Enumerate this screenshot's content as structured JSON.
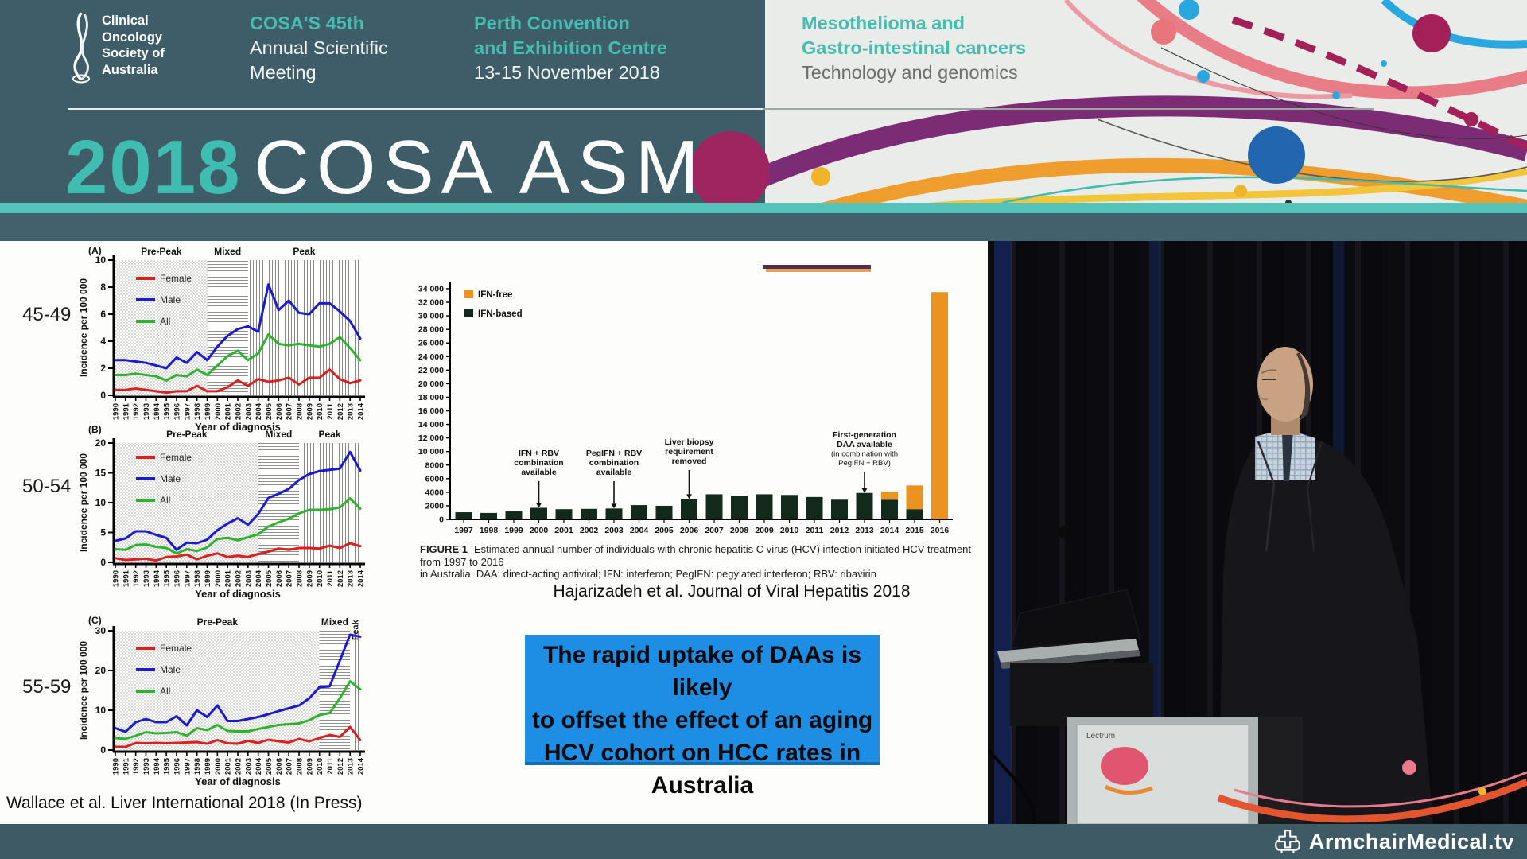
{
  "header": {
    "org_name_lines": [
      "Clinical",
      "Oncology",
      "Society of",
      "Australia"
    ],
    "meeting_lines": [
      "COSA'S 45th",
      "Annual Scientific",
      "Meeting"
    ],
    "venue_lines": [
      "Perth Convention",
      "and Exhibition Centre",
      "13-15 November 2018"
    ],
    "theme_lines": [
      "Mesothelioma and",
      "Gastro-intestinal cancers",
      "Technology and genomics"
    ],
    "banner_year": "2018",
    "banner_title": "COSA ASM"
  },
  "slide": {
    "age_labels": [
      "45-49",
      "50-54",
      "55-59"
    ],
    "left_citation": "Wallace et al. Liver International 2018 (In Press)",
    "right_citation": "Hajarizadeh et al. Journal of Viral Hepatitis 2018",
    "figure_caption_label": "FIGURE 1",
    "figure_caption_line1": "Estimated annual number of individuals with chronic hepatitis C virus (HCV) infection initiated HCV treatment from 1997 to 2016",
    "figure_caption_line2": "in Australia. DAA: direct-acting antiviral; IFN: interferon; PegIFN: pegylated interferon; RBV: ribavirin",
    "message_lines": [
      "The rapid uptake of DAAs is likely",
      "to offset the effect of an aging",
      "HCV cohort on HCC rates in",
      "Australia"
    ]
  },
  "chart_data": [
    {
      "id": "A",
      "type": "line",
      "panel_label": "(A)",
      "age_group": "45-49",
      "xlabel": "Year of diagnosis",
      "ylabel": "Incidence per 100 000",
      "x_start": 1990,
      "x_end": 2014,
      "ylim": [
        0,
        10
      ],
      "yticks": [
        0,
        2,
        4,
        6,
        8,
        10
      ],
      "regions": [
        {
          "label": "Pre-Peak",
          "from": 1990,
          "to": 1999,
          "pattern": "dots"
        },
        {
          "label": "Mixed",
          "from": 1999,
          "to": 2003,
          "pattern": "hlines"
        },
        {
          "label": "Peak",
          "from": 2003,
          "to": 2014,
          "pattern": "vlines"
        }
      ],
      "series": [
        {
          "name": "Female",
          "color": "#dc1f1f",
          "values": [
            0.4,
            0.4,
            0.5,
            0.4,
            0.3,
            0.2,
            0.3,
            0.3,
            0.7,
            0.3,
            0.3,
            0.6,
            1.1,
            0.7,
            1.2,
            1.0,
            1.1,
            1.3,
            0.8,
            1.3,
            1.3,
            1.9,
            1.2,
            0.9,
            1.1
          ]
        },
        {
          "name": "Male",
          "color": "#1a1ad0",
          "values": [
            2.6,
            2.6,
            2.5,
            2.4,
            2.2,
            2.0,
            2.8,
            2.4,
            3.2,
            2.6,
            3.6,
            4.4,
            4.9,
            5.1,
            4.7,
            8.2,
            6.3,
            7.0,
            6.1,
            6.0,
            6.8,
            6.8,
            6.2,
            5.5,
            4.2
          ]
        },
        {
          "name": "All",
          "color": "#2db32d",
          "values": [
            1.5,
            1.5,
            1.6,
            1.5,
            1.4,
            1.1,
            1.5,
            1.4,
            1.9,
            1.5,
            2.2,
            2.9,
            3.3,
            2.6,
            3.1,
            4.5,
            3.8,
            3.7,
            3.8,
            3.7,
            3.6,
            3.8,
            4.3,
            3.5,
            2.6
          ]
        }
      ]
    },
    {
      "id": "B",
      "type": "line",
      "panel_label": "(B)",
      "age_group": "50-54",
      "xlabel": "Year of diagnosis",
      "ylabel": "Incidence per 100 000",
      "x_start": 1990,
      "x_end": 2014,
      "ylim": [
        0,
        20
      ],
      "yticks": [
        0,
        5,
        10,
        15,
        20
      ],
      "regions": [
        {
          "label": "Pre-Peak",
          "from": 1990,
          "to": 2004,
          "pattern": "dots"
        },
        {
          "label": "Mixed",
          "from": 2004,
          "to": 2008,
          "pattern": "hlines"
        },
        {
          "label": "Peak",
          "from": 2008,
          "to": 2014,
          "pattern": "vlines"
        }
      ],
      "series": [
        {
          "name": "Female",
          "color": "#dc1f1f",
          "values": [
            0.7,
            0.4,
            0.5,
            0.6,
            0.3,
            0.9,
            1.0,
            1.3,
            0.5,
            1.1,
            1.5,
            0.9,
            1.1,
            0.9,
            1.4,
            1.8,
            2.3,
            2.1,
            2.4,
            2.4,
            2.3,
            2.8,
            2.4,
            3.2,
            2.7
          ]
        },
        {
          "name": "Male",
          "color": "#1a1ad0",
          "values": [
            3.6,
            4.0,
            5.2,
            5.2,
            4.6,
            4.1,
            2.1,
            3.3,
            3.2,
            3.8,
            5.4,
            6.5,
            7.4,
            6.3,
            8.1,
            10.8,
            11.5,
            12.3,
            13.8,
            14.8,
            15.3,
            15.5,
            15.7,
            18.5,
            15.4
          ]
        },
        {
          "name": "All",
          "color": "#2db32d",
          "values": [
            2.2,
            2.1,
            2.9,
            3.0,
            2.6,
            2.4,
            1.5,
            2.2,
            1.9,
            2.5,
            3.9,
            4.1,
            3.7,
            4.2,
            4.7,
            6.0,
            6.7,
            7.3,
            8.2,
            8.8,
            8.8,
            8.9,
            9.2,
            10.7,
            9.0
          ]
        }
      ]
    },
    {
      "id": "C",
      "type": "line",
      "panel_label": "(C)",
      "age_group": "55-59",
      "xlabel": "Year of diagnosis",
      "ylabel": "Incidence per 100 000",
      "x_start": 1990,
      "x_end": 2014,
      "ylim": [
        0,
        30
      ],
      "yticks": [
        0,
        10,
        20,
        30
      ],
      "regions": [
        {
          "label": "Pre-Peak",
          "from": 1990,
          "to": 2010,
          "pattern": "dots"
        },
        {
          "label": "Mixed",
          "from": 2010,
          "to": 2013,
          "pattern": "hlines"
        },
        {
          "label": "Peak",
          "from": 2013,
          "to": 2014,
          "pattern": "vlines"
        }
      ],
      "series": [
        {
          "name": "Female",
          "color": "#dc1f1f",
          "values": [
            0.8,
            0.8,
            1.8,
            1.7,
            1.8,
            1.7,
            1.8,
            1.9,
            2.0,
            1.6,
            2.5,
            1.7,
            1.6,
            2.3,
            1.8,
            2.6,
            2.2,
            1.9,
            2.8,
            2.2,
            3.0,
            3.8,
            3.3,
            5.8,
            2.5
          ]
        },
        {
          "name": "Male",
          "color": "#1a1ad0",
          "values": [
            5.5,
            4.6,
            7.0,
            7.8,
            7.0,
            7.0,
            8.5,
            6.2,
            10.0,
            8.3,
            11.2,
            7.3,
            7.3,
            7.8,
            8.3,
            9.0,
            9.8,
            10.5,
            11.2,
            13.0,
            15.8,
            16.0,
            22.5,
            29.0,
            28.5
          ]
        },
        {
          "name": "All",
          "color": "#2db32d",
          "values": [
            3.0,
            2.8,
            3.6,
            4.5,
            4.2,
            4.3,
            4.5,
            3.6,
            5.5,
            5.0,
            6.3,
            4.8,
            4.7,
            4.7,
            5.3,
            5.8,
            6.3,
            6.5,
            6.7,
            7.5,
            8.8,
            9.3,
            13.0,
            17.3,
            15.3
          ]
        }
      ]
    },
    {
      "id": "treatment",
      "type": "bar",
      "stacked": true,
      "categories": [
        1997,
        1998,
        1999,
        2000,
        2001,
        2002,
        2003,
        2004,
        2005,
        2006,
        2007,
        2008,
        2009,
        2010,
        2011,
        2012,
        2013,
        2014,
        2015,
        2016
      ],
      "ylim": [
        0,
        34000
      ],
      "ytick_step": 2000,
      "series": [
        {
          "name": "IFN-based",
          "color": "#12291b",
          "values": [
            1050,
            950,
            1200,
            1700,
            1500,
            1550,
            1600,
            2100,
            2000,
            3000,
            3700,
            3500,
            3700,
            3600,
            3300,
            2900,
            3900,
            2900,
            1500,
            0
          ]
        },
        {
          "name": "IFN-free",
          "color": "#ec9220",
          "values": [
            0,
            0,
            0,
            0,
            0,
            0,
            0,
            0,
            0,
            0,
            0,
            0,
            0,
            0,
            0,
            0,
            0,
            1200,
            3500,
            33500
          ]
        }
      ],
      "legend_order": [
        "IFN-free",
        "IFN-based"
      ],
      "annotations": [
        {
          "year": 2000,
          "bold": "IFN + RBV\ncombination\navailable",
          "normal": ""
        },
        {
          "year": 2003,
          "bold": "PegIFN + RBV\ncombination\navailable",
          "normal": ""
        },
        {
          "year": 2006,
          "bold": "Liver biopsy\nrequirement\nremoved",
          "normal": ""
        },
        {
          "year": 2013,
          "bold": "First-generation\nDAA available",
          "normal": "(in combination with\nPegIFN + RBV)"
        }
      ]
    }
  ],
  "video": {
    "lectern_brand": "Lectrum"
  },
  "footer": {
    "brand": "ArmchairMedical.tv"
  },
  "colors": {
    "header_dark": "#3e5d68",
    "header_light": "#e9ece8",
    "accent_teal": "#45bdb0",
    "band_teal": "#54c4ba",
    "band_slate": "#42616d",
    "message_blue": "#1e8de4",
    "female": "#dc1f1f",
    "male": "#1a1ad0",
    "all": "#2db32d",
    "ifn_based": "#12291b",
    "ifn_free": "#ec9220",
    "footer_bar": "#3e5a64"
  }
}
